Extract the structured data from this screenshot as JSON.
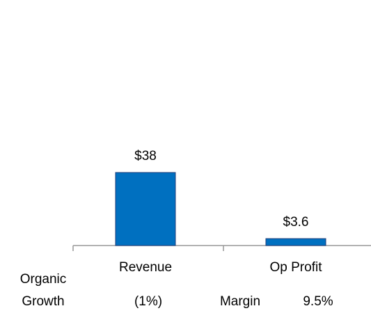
{
  "chart_data": {
    "type": "bar",
    "categories": [
      "Revenue",
      "Op Profit"
    ],
    "values": [
      38,
      3.6
    ],
    "value_labels": [
      "$38",
      "$3.6"
    ],
    "color": "#0070c0",
    "annotations": [
      "Organic Growth",
      "(1%)",
      "Margin",
      "9.5%"
    ]
  }
}
